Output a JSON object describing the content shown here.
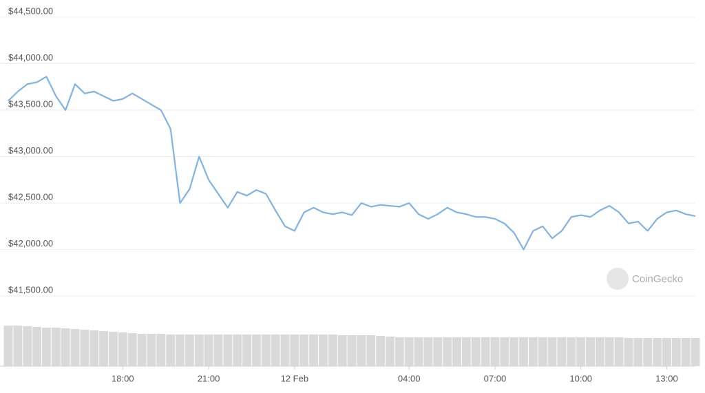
{
  "chart_data": [
    {
      "type": "line",
      "watermark": "CoinGecko",
      "x": [
        -10,
        -9.667,
        -9.333,
        -9,
        -8.667,
        -8.333,
        -8,
        -7.667,
        -7.333,
        -7,
        -6.667,
        -6.333,
        -6,
        -5.667,
        -5.333,
        -5,
        -4.667,
        -4.333,
        -4,
        -3.667,
        -3.333,
        -3,
        -2.667,
        -2.333,
        -2,
        -1.667,
        -1.333,
        -1,
        -0.667,
        -0.333,
        0,
        0.333,
        0.667,
        1,
        1.333,
        1.667,
        2,
        2.333,
        2.667,
        3,
        3.333,
        3.667,
        4,
        4.333,
        4.667,
        5,
        5.333,
        5.667,
        6,
        6.333,
        6.667,
        7,
        7.333,
        7.667,
        8,
        8.333,
        8.667,
        9,
        9.333,
        9.667,
        10,
        10.333,
        10.667,
        11,
        11.333,
        11.667,
        12,
        12.333,
        12.667,
        13,
        13.333,
        13.667,
        14
      ],
      "series": [
        {
          "color": "#7fb3e6",
          "values": [
            43600,
            43700,
            43780,
            43800,
            43860,
            43650,
            43500,
            43780,
            43680,
            43700,
            43650,
            43600,
            43620,
            43680,
            43620,
            43560,
            43500,
            43300,
            42500,
            42650,
            43000,
            42750,
            42600,
            42450,
            42620,
            42580,
            42640,
            42600,
            42420,
            42250,
            42200,
            42400,
            42450,
            42400,
            42380,
            42400,
            42370,
            42500,
            42460,
            42480,
            42470,
            42460,
            42500,
            42380,
            42330,
            42380,
            42450,
            42400,
            42380,
            42350,
            42350,
            42330,
            42280,
            42180,
            42000,
            42200,
            42250,
            42120,
            42200,
            42350,
            42370,
            42350,
            42420,
            42470,
            42400,
            42280,
            42300,
            42200,
            42330,
            42400,
            42420,
            42380,
            42360
          ]
        }
      ],
      "xlim": [
        -10,
        14
      ],
      "xticks": [
        {
          "value": -6,
          "label": "18:00"
        },
        {
          "value": -3,
          "label": "21:00"
        },
        {
          "value": 0,
          "label": "12 Feb"
        },
        {
          "value": 4,
          "label": "04:00"
        },
        {
          "value": 7,
          "label": "07:00"
        },
        {
          "value": 10,
          "label": "10:00"
        },
        {
          "value": 13,
          "label": "13:00"
        }
      ],
      "ylim": [
        41500,
        44500
      ],
      "yticks": [
        {
          "value": 44500,
          "label": "$44,500.00"
        },
        {
          "value": 44000,
          "label": "$44,000.00"
        },
        {
          "value": 43500,
          "label": "$43,500.00"
        },
        {
          "value": 43000,
          "label": "$43,000.00"
        },
        {
          "value": 42500,
          "label": "$42,500.00"
        },
        {
          "value": 42000,
          "label": "$42,000.00"
        },
        {
          "value": 41500,
          "label": "$41,500.00"
        }
      ],
      "grid": true
    },
    {
      "type": "bar",
      "color": "#d9d9d9",
      "ylim": [
        0,
        60
      ],
      "values": [
        59,
        59,
        58,
        57,
        56,
        56,
        55,
        54,
        53,
        52,
        51,
        50,
        49,
        48,
        47,
        47,
        47,
        46,
        46,
        46,
        46,
        46,
        46,
        46,
        46,
        46,
        46,
        46,
        46,
        46,
        46,
        46,
        46,
        46,
        46,
        45,
        45,
        45,
        45,
        44,
        43,
        42,
        42,
        42,
        42,
        42,
        42,
        42,
        42,
        42,
        42,
        42,
        42,
        42,
        42,
        42,
        42,
        42,
        42,
        42,
        42,
        42,
        42,
        42,
        42,
        41,
        41,
        41,
        41,
        41,
        41,
        41,
        41
      ]
    }
  ]
}
